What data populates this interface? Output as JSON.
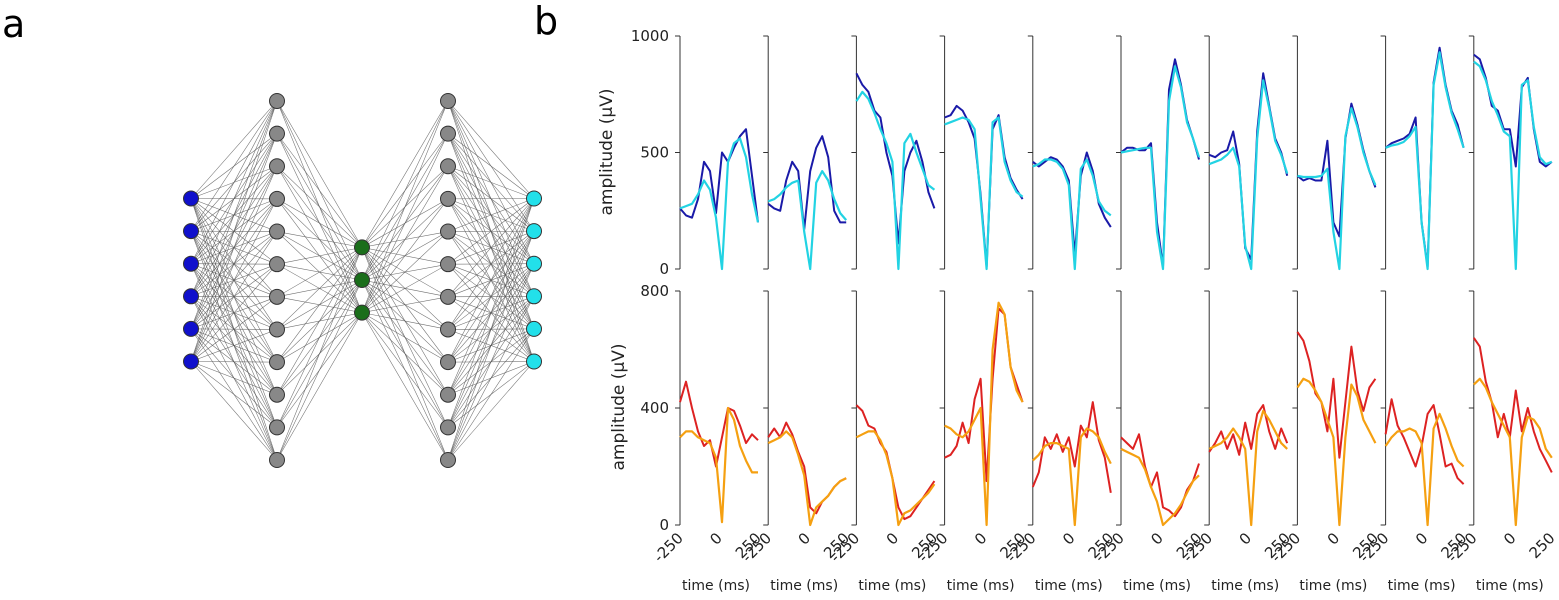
{
  "panel_labels": {
    "a": "a",
    "b": "b"
  },
  "network": {
    "layers": [
      {
        "nodes": 6,
        "color": "#1010cc"
      },
      {
        "nodes": 12,
        "color": "#888888"
      },
      {
        "nodes": 3,
        "color": "#1a6e1a"
      },
      {
        "nodes": 12,
        "color": "#888888"
      },
      {
        "nodes": 6,
        "color": "#22e0ea"
      }
    ]
  },
  "chart_data": [
    {
      "type": "line",
      "row": "top",
      "panels": 10,
      "ylabel": "amplitude (μV)",
      "ylim": [
        0,
        1000
      ],
      "yticks": [
        "0",
        "500",
        "1000"
      ],
      "xlim": [
        -250,
        250
      ],
      "series": [
        {
          "color": "#1a1aa8",
          "values": [
            [
              260,
              230,
              220,
              300,
              460,
              420,
              240,
              500,
              460,
              520,
              570,
              600,
              400,
              200
            ],
            [
              280,
              260,
              250,
              380,
              460,
              420,
              170,
              420,
              520,
              570,
              480,
              250,
              200,
              200
            ],
            [
              840,
              790,
              760,
              680,
              650,
              500,
              400,
              110,
              420,
              500,
              550,
              460,
              330,
              260
            ],
            [
              650,
              660,
              700,
              680,
              630,
              560,
              320,
              10,
              600,
              660,
              480,
              390,
              340,
              300
            ],
            [
              460,
              440,
              460,
              480,
              470,
              440,
              380,
              60,
              400,
              500,
              420,
              280,
              220,
              180
            ],
            [
              500,
              520,
              520,
              510,
              510,
              540,
              200,
              10,
              770,
              900,
              790,
              640,
              560,
              470
            ],
            [
              490,
              480,
              500,
              510,
              590,
              450,
              90,
              40,
              590,
              840,
              700,
              560,
              500,
              400
            ],
            [
              400,
              380,
              390,
              380,
              380,
              550,
              200,
              140,
              560,
              710,
              620,
              510,
              420,
              350
            ],
            [
              520,
              540,
              550,
              560,
              580,
              650,
              200,
              10,
              800,
              950,
              790,
              680,
              620,
              520
            ],
            [
              920,
              900,
              820,
              700,
              680,
              600,
              600,
              440,
              780,
              820,
              600,
              460,
              440,
              460
            ]
          ]
        },
        {
          "color": "#22d3e3",
          "values": [
            [
              260,
              270,
              280,
              320,
              380,
              340,
              220,
              0,
              460,
              540,
              560,
              480,
              320,
              200
            ],
            [
              290,
              300,
              320,
              350,
              370,
              380,
              160,
              0,
              370,
              420,
              380,
              300,
              240,
              210
            ],
            [
              720,
              760,
              730,
              670,
              600,
              540,
              460,
              0,
              540,
              580,
              500,
              430,
              360,
              340
            ],
            [
              620,
              630,
              640,
              650,
              640,
              600,
              300,
              0,
              630,
              650,
              460,
              380,
              330,
              310
            ],
            [
              440,
              450,
              470,
              470,
              460,
              430,
              360,
              0,
              430,
              470,
              400,
              290,
              250,
              230
            ],
            [
              500,
              505,
              510,
              515,
              520,
              520,
              160,
              0,
              720,
              870,
              780,
              630,
              560,
              480
            ],
            [
              450,
              460,
              470,
              490,
              520,
              440,
              100,
              0,
              560,
              810,
              690,
              550,
              490,
              410
            ],
            [
              400,
              395,
              395,
              395,
              400,
              430,
              160,
              0,
              570,
              690,
              610,
              500,
              420,
              360
            ],
            [
              520,
              530,
              535,
              545,
              570,
              610,
              200,
              0,
              790,
              930,
              780,
              670,
              600,
              520
            ],
            [
              890,
              870,
              810,
              720,
              660,
              590,
              570,
              0,
              790,
              810,
              610,
              480,
              450,
              460
            ]
          ]
        }
      ]
    },
    {
      "type": "line",
      "row": "bottom",
      "panels": 10,
      "ylabel": "amplitude (μV)",
      "ylim": [
        0,
        800
      ],
      "yticks": [
        "0",
        "400",
        "800"
      ],
      "xlim": [
        -250,
        250
      ],
      "xlabel": "time (ms)",
      "xticks": [
        "-250",
        "0",
        "250"
      ],
      "series": [
        {
          "color": "#dd2222",
          "values": [
            [
              420,
              490,
              400,
              320,
              270,
              290,
              200,
              300,
              400,
              390,
              340,
              280,
              310,
              290
            ],
            [
              300,
              330,
              300,
              350,
              310,
              250,
              200,
              60,
              40,
              80,
              100,
              130,
              150,
              160
            ],
            [
              410,
              390,
              340,
              330,
              280,
              250,
              160,
              60,
              20,
              30,
              60,
              90,
              120,
              150
            ],
            [
              230,
              240,
              270,
              350,
              280,
              430,
              500,
              150,
              500,
              740,
              720,
              540,
              480,
              420
            ],
            [
              130,
              180,
              300,
              260,
              310,
              250,
              300,
              200,
              340,
              300,
              420,
              290,
              230,
              110
            ],
            [
              300,
              280,
              260,
              310,
              200,
              130,
              180,
              60,
              50,
              30,
              60,
              120,
              150,
              210
            ],
            [
              250,
              280,
              320,
              260,
              310,
              240,
              350,
              260,
              380,
              410,
              320,
              260,
              330,
              280
            ],
            [
              660,
              630,
              560,
              450,
              420,
              320,
              500,
              230,
              420,
              610,
              460,
              390,
              470,
              500
            ],
            [
              310,
              430,
              340,
              300,
              250,
              200,
              270,
              380,
              410,
              310,
              200,
              210,
              160,
              140
            ],
            [
              640,
              610,
              490,
              420,
              300,
              380,
              300,
              460,
              320,
              400,
              320,
              260,
              220,
              180
            ]
          ]
        },
        {
          "color": "#f5a011",
          "values": [
            [
              300,
              320,
              320,
              300,
              290,
              280,
              230,
              10,
              400,
              360,
              270,
              220,
              180,
              180
            ],
            [
              280,
              290,
              300,
              320,
              300,
              240,
              170,
              0,
              60,
              80,
              100,
              130,
              150,
              160
            ],
            [
              300,
              310,
              320,
              320,
              290,
              240,
              160,
              0,
              40,
              50,
              70,
              90,
              110,
              140
            ],
            [
              340,
              330,
              310,
              300,
              320,
              360,
              400,
              0,
              600,
              760,
              720,
              540,
              460,
              420
            ],
            [
              220,
              240,
              270,
              280,
              280,
              270,
              260,
              0,
              300,
              330,
              320,
              300,
              250,
              210
            ],
            [
              260,
              250,
              240,
              230,
              190,
              130,
              80,
              0,
              20,
              40,
              70,
              110,
              150,
              170
            ],
            [
              260,
              270,
              280,
              300,
              330,
              300,
              260,
              0,
              320,
              390,
              360,
              320,
              280,
              260
            ],
            [
              470,
              500,
              490,
              460,
              420,
              360,
              300,
              0,
              300,
              480,
              440,
              360,
              320,
              280
            ],
            [
              270,
              300,
              320,
              320,
              330,
              320,
              280,
              0,
              330,
              380,
              330,
              270,
              220,
              200
            ],
            [
              480,
              500,
              470,
              420,
              380,
              340,
              300,
              0,
              300,
              370,
              360,
              330,
              260,
              230
            ]
          ]
        }
      ]
    }
  ]
}
